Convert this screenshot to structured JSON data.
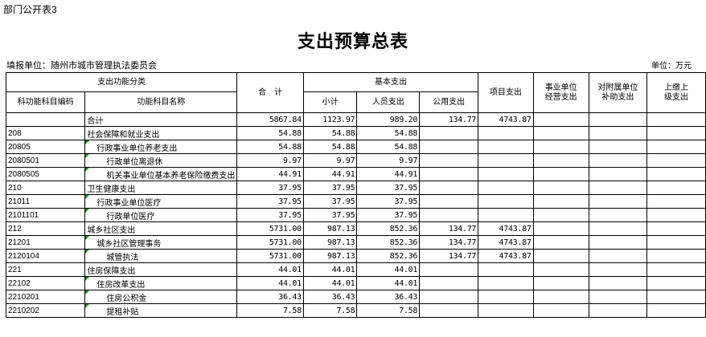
{
  "form_no": "部门公开表3",
  "title": "支出预算总表",
  "unit_left": "填报单位：随州市城市管理执法委员会",
  "unit_right": "单位：万元",
  "headers": {
    "category_group": "支出功能分类",
    "code": "科功能科目编码",
    "name": "功能科目名称",
    "total": "合　计",
    "basic_group": "基本支出",
    "subtotal": "小计",
    "personnel": "人员支出",
    "public": "公用支出",
    "project": "项目支出",
    "business": "事业单位\n经营支出",
    "subsidy": "对附属单位\n补助支出",
    "remit": "上缴上\n级支出"
  },
  "rows": [
    {
      "code": "",
      "name": "合计",
      "level": 1,
      "total": "5867.84",
      "subtotal": "1123.97",
      "personnel": "989.20",
      "public": "134.77",
      "project": "4743.87",
      "business": "",
      "subsidy": "",
      "remit": ""
    },
    {
      "code": "208",
      "name": "社会保障和就业支出",
      "level": 1,
      "total": "54.88",
      "subtotal": "54.88",
      "personnel": "54.88",
      "public": "",
      "project": "",
      "business": "",
      "subsidy": "",
      "remit": ""
    },
    {
      "code": "20805",
      "name": "行政事业单位养老支出",
      "level": 2,
      "total": "54.88",
      "subtotal": "54.88",
      "personnel": "54.88",
      "public": "",
      "project": "",
      "business": "",
      "subsidy": "",
      "remit": ""
    },
    {
      "code": "2080501",
      "name": "行政单位离退休",
      "level": 3,
      "total": "9.97",
      "subtotal": "9.97",
      "personnel": "9.97",
      "public": "",
      "project": "",
      "business": "",
      "subsidy": "",
      "remit": ""
    },
    {
      "code": "2080505",
      "name": "机关事业单位基本养老保险缴费支出",
      "level": 3,
      "total": "44.91",
      "subtotal": "44.91",
      "personnel": "44.91",
      "public": "",
      "project": "",
      "business": "",
      "subsidy": "",
      "remit": ""
    },
    {
      "code": "210",
      "name": "卫生健康支出",
      "level": 1,
      "total": "37.95",
      "subtotal": "37.95",
      "personnel": "37.95",
      "public": "",
      "project": "",
      "business": "",
      "subsidy": "",
      "remit": ""
    },
    {
      "code": "21011",
      "name": "行政事业单位医疗",
      "level": 2,
      "total": "37.95",
      "subtotal": "37.95",
      "personnel": "37.95",
      "public": "",
      "project": "",
      "business": "",
      "subsidy": "",
      "remit": ""
    },
    {
      "code": "2101101",
      "name": "行政单位医疗",
      "level": 3,
      "total": "37.95",
      "subtotal": "37.95",
      "personnel": "37.95",
      "public": "",
      "project": "",
      "business": "",
      "subsidy": "",
      "remit": ""
    },
    {
      "code": "212",
      "name": "城乡社区支出",
      "level": 1,
      "total": "5731.00",
      "subtotal": "987.13",
      "personnel": "852.36",
      "public": "134.77",
      "project": "4743.87",
      "business": "",
      "subsidy": "",
      "remit": ""
    },
    {
      "code": "21201",
      "name": "城乡社区管理事务",
      "level": 2,
      "total": "5731.00",
      "subtotal": "987.13",
      "personnel": "852.36",
      "public": "134.77",
      "project": "4743.87",
      "business": "",
      "subsidy": "",
      "remit": ""
    },
    {
      "code": "2120104",
      "name": "城管执法",
      "level": 3,
      "total": "5731.00",
      "subtotal": "987.13",
      "personnel": "852.36",
      "public": "134.77",
      "project": "4743.87",
      "business": "",
      "subsidy": "",
      "remit": ""
    },
    {
      "code": "221",
      "name": "住房保障支出",
      "level": 1,
      "total": "44.01",
      "subtotal": "44.01",
      "personnel": "44.01",
      "public": "",
      "project": "",
      "business": "",
      "subsidy": "",
      "remit": ""
    },
    {
      "code": "22102",
      "name": "住房改革支出",
      "level": 2,
      "total": "44.01",
      "subtotal": "44.01",
      "personnel": "44.01",
      "public": "",
      "project": "",
      "business": "",
      "subsidy": "",
      "remit": ""
    },
    {
      "code": "2210201",
      "name": "住房公积金",
      "level": 3,
      "total": "36.43",
      "subtotal": "36.43",
      "personnel": "36.43",
      "public": "",
      "project": "",
      "business": "",
      "subsidy": "",
      "remit": ""
    },
    {
      "code": "2210202",
      "name": "提租补贴",
      "level": 3,
      "total": "7.58",
      "subtotal": "7.58",
      "personnel": "7.58",
      "public": "",
      "project": "",
      "business": "",
      "subsidy": "",
      "remit": ""
    }
  ],
  "colors": {
    "cell_flag": "#1a8a1a"
  }
}
